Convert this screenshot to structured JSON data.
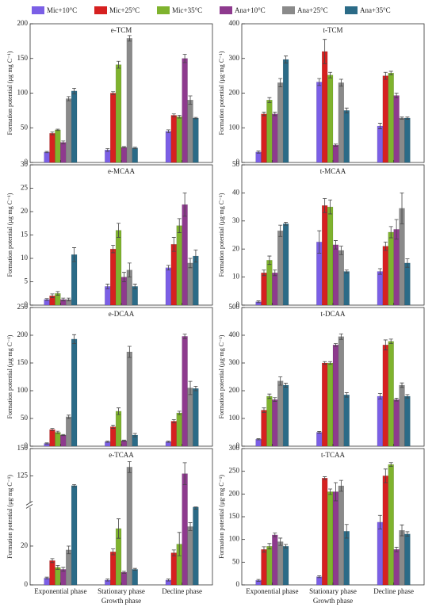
{
  "legend": {
    "names": [
      "Mic+10°C",
      "Mic+25°C",
      "Mic+35°C",
      "Ana+10°C",
      "Ana+25°C",
      "Ana+35°C"
    ],
    "colors": [
      "#7b5fe6",
      "#d62020",
      "#7fb32e",
      "#8e3a8e",
      "#8a8a8a",
      "#2b6b87"
    ]
  },
  "chart_data": [
    {
      "type": "bar",
      "title": "e-TCM",
      "ylabel": "Formation potential (μg·mg C⁻¹)",
      "categories": [
        null,
        null,
        null
      ],
      "ylim": [
        0,
        200
      ],
      "yticks": [
        0,
        50,
        100,
        150,
        200
      ],
      "series": [
        {
          "values": [
            15,
            18,
            45
          ],
          "errors": [
            1,
            2,
            2
          ]
        },
        {
          "values": [
            42,
            100,
            68
          ],
          "errors": [
            2,
            2,
            2
          ]
        },
        {
          "values": [
            47,
            141,
            66
          ],
          "errors": [
            1,
            5,
            2
          ]
        },
        {
          "values": [
            29,
            22,
            150
          ],
          "errors": [
            2,
            1,
            6
          ]
        },
        {
          "values": [
            92,
            179,
            90
          ],
          "errors": [
            3,
            4,
            6
          ]
        },
        {
          "values": [
            103,
            21,
            64
          ],
          "errors": [
            4,
            1,
            1
          ]
        }
      ]
    },
    {
      "type": "bar",
      "title": "t-TCM",
      "ylabel": "Formation potential (μg·mg C⁻¹)",
      "categories": [
        null,
        null,
        null
      ],
      "ylim": [
        0,
        400
      ],
      "yticks": [
        0,
        100,
        200,
        300,
        400
      ],
      "series": [
        {
          "values": [
            30,
            232,
            105
          ],
          "errors": [
            3,
            10,
            8
          ]
        },
        {
          "values": [
            140,
            320,
            250
          ],
          "errors": [
            5,
            35,
            10
          ]
        },
        {
          "values": [
            180,
            252,
            258
          ],
          "errors": [
            7,
            8,
            5
          ]
        },
        {
          "values": [
            140,
            50,
            193
          ],
          "errors": [
            5,
            3,
            7
          ]
        },
        {
          "values": [
            230,
            230,
            128
          ],
          "errors": [
            12,
            10,
            3
          ]
        },
        {
          "values": [
            297,
            150,
            128
          ],
          "errors": [
            10,
            7,
            3
          ]
        }
      ]
    },
    {
      "type": "bar",
      "title": "e-MCAA",
      "ylabel": "Formation potential (μg·mg C⁻¹)",
      "categories": [
        null,
        null,
        null
      ],
      "ylim": [
        0,
        30
      ],
      "yticks": [
        0,
        5,
        10,
        15,
        20,
        25,
        30
      ],
      "series": [
        {
          "values": [
            1.2,
            4.0,
            8.0
          ],
          "errors": [
            0.2,
            0.5,
            0.5
          ]
        },
        {
          "values": [
            2.0,
            12.0,
            13.0
          ],
          "errors": [
            0.4,
            0.8,
            1.5
          ]
        },
        {
          "values": [
            2.5,
            16.0,
            17.0
          ],
          "errors": [
            0.4,
            1.5,
            1.5
          ]
        },
        {
          "values": [
            1.2,
            6.0,
            21.5
          ],
          "errors": [
            0.3,
            1.0,
            2.5
          ]
        },
        {
          "values": [
            1.2,
            7.5,
            9.0
          ],
          "errors": [
            0.3,
            1.5,
            1.0
          ]
        },
        {
          "values": [
            10.8,
            4.0,
            10.5
          ],
          "errors": [
            1.5,
            0.5,
            1.3
          ]
        }
      ]
    },
    {
      "type": "bar",
      "title": "t-MCAA",
      "ylabel": "Formation potential (μg·mg C⁻¹)",
      "categories": [
        null,
        null,
        null
      ],
      "ylim": [
        0,
        50
      ],
      "yticks": [
        0,
        10,
        20,
        30,
        40,
        50
      ],
      "series": [
        {
          "values": [
            1.2,
            22.5,
            12
          ],
          "errors": [
            0.3,
            4,
            1
          ]
        },
        {
          "values": [
            11.5,
            35.5,
            21
          ],
          "errors": [
            1,
            2.5,
            1.5
          ]
        },
        {
          "values": [
            16,
            35,
            26
          ],
          "errors": [
            1.5,
            2.5,
            2
          ]
        },
        {
          "values": [
            11.5,
            21.5,
            27
          ],
          "errors": [
            1,
            1.5,
            3.5
          ]
        },
        {
          "values": [
            26.5,
            19.5,
            34.5
          ],
          "errors": [
            2,
            1.5,
            5.5
          ]
        },
        {
          "values": [
            29,
            12,
            15
          ],
          "errors": [
            0.5,
            0.5,
            1.5
          ]
        }
      ]
    },
    {
      "type": "bar",
      "title": "e-DCAA",
      "ylabel": "Formation potential (μg·mg C⁻¹)",
      "categories": [
        null,
        null,
        null
      ],
      "ylim": [
        0,
        250
      ],
      "yticks": [
        0,
        50,
        100,
        150,
        200,
        250
      ],
      "series": [
        {
          "values": [
            5,
            8,
            8
          ],
          "errors": [
            1,
            1,
            1
          ]
        },
        {
          "values": [
            30,
            35,
            45
          ],
          "errors": [
            2,
            3,
            3
          ]
        },
        {
          "values": [
            25,
            63,
            60
          ],
          "errors": [
            2,
            6,
            3
          ]
        },
        {
          "values": [
            20,
            10,
            198
          ],
          "errors": [
            1,
            1,
            4
          ]
        },
        {
          "values": [
            53,
            170,
            105
          ],
          "errors": [
            3,
            10,
            12
          ]
        },
        {
          "values": [
            193,
            20,
            104
          ],
          "errors": [
            8,
            3,
            4
          ]
        }
      ]
    },
    {
      "type": "bar",
      "title": "t-DCAA",
      "ylabel": "Formation potential (μg·mg C⁻¹)",
      "categories": [
        null,
        null,
        null
      ],
      "ylim": [
        0,
        500
      ],
      "yticks": [
        0,
        100,
        200,
        300,
        400,
        500
      ],
      "series": [
        {
          "values": [
            25,
            50,
            180
          ],
          "errors": [
            2,
            3,
            10
          ]
        },
        {
          "values": [
            130,
            300,
            365
          ],
          "errors": [
            8,
            5,
            18
          ]
        },
        {
          "values": [
            180,
            300,
            378
          ],
          "errors": [
            8,
            5,
            8
          ]
        },
        {
          "values": [
            168,
            365,
            168
          ],
          "errors": [
            7,
            5,
            5
          ]
        },
        {
          "values": [
            235,
            395,
            220
          ],
          "errors": [
            15,
            10,
            8
          ]
        },
        {
          "values": [
            220,
            185,
            180
          ],
          "errors": [
            7,
            8,
            6
          ]
        }
      ]
    },
    {
      "type": "bar",
      "title": "e-TCAA",
      "ylabel": "Formation potential (μg·mg C⁻¹)",
      "categories": [
        "Exponential phase",
        "Stationary phase",
        "Decline phase"
      ],
      "xlabel": "Growth phase",
      "ylim": [
        0,
        150
      ],
      "axis_break": [
        40,
        100
      ],
      "yticks": [
        0,
        20,
        125,
        150
      ],
      "series": [
        {
          "values": [
            3.5,
            2.5,
            2.5
          ],
          "errors": [
            0.5,
            0.5,
            0.5
          ]
        },
        {
          "values": [
            12.5,
            17,
            16.5
          ],
          "errors": [
            1,
            1.5,
            1.5
          ]
        },
        {
          "values": [
            9,
            29,
            21
          ],
          "errors": [
            1,
            5,
            6
          ]
        },
        {
          "values": [
            8,
            6.5,
            127
          ],
          "errors": [
            1,
            0.5,
            10
          ]
        },
        {
          "values": [
            18,
            133,
            30
          ],
          "errors": [
            2,
            5,
            2
          ]
        },
        {
          "values": [
            116,
            8,
            41
          ],
          "errors": [
            1,
            0.5,
            2
          ]
        }
      ]
    },
    {
      "type": "bar",
      "title": "t-TCAA",
      "ylabel": "Formation potential (μg·mg C⁻¹)",
      "categories": [
        "Exponential phase",
        "Stationary phase",
        "Decline phase"
      ],
      "xlabel": "Growth phase",
      "ylim": [
        0,
        300
      ],
      "yticks": [
        0,
        50,
        100,
        150,
        200,
        250,
        300
      ],
      "series": [
        {
          "values": [
            10,
            18,
            138
          ],
          "errors": [
            2,
            2,
            15
          ]
        },
        {
          "values": [
            78,
            235,
            240
          ],
          "errors": [
            6,
            3,
            15
          ]
        },
        {
          "values": [
            85,
            205,
            265
          ],
          "errors": [
            6,
            6,
            4
          ]
        },
        {
          "values": [
            110,
            205,
            78
          ],
          "errors": [
            4,
            20,
            5
          ]
        },
        {
          "values": [
            95,
            218,
            120
          ],
          "errors": [
            8,
            12,
            12
          ]
        },
        {
          "values": [
            85,
            118,
            112
          ],
          "errors": [
            4,
            15,
            5
          ]
        }
      ]
    }
  ]
}
